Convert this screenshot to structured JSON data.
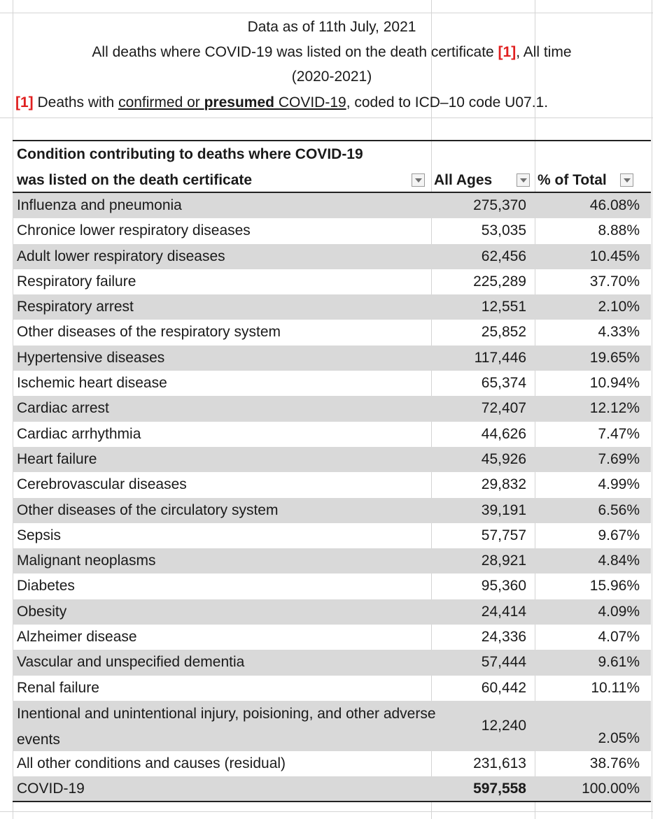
{
  "notes": {
    "date": "Data as of 11th July, 2021",
    "scope_text": "All deaths where COVID-19 was listed on the death certificate ",
    "scope_ref": "[1]",
    "scope_suffix": ", All time",
    "years": "(2020-2021)",
    "footnote_ref": "[1]",
    "footnote_pre": " Deaths with ",
    "footnote_u1": "confirmed or ",
    "footnote_u2": "presumed",
    "footnote_u3": " COVID-19",
    "footnote_post": ", coded to ICD–10 code U07.1."
  },
  "table": {
    "headers": {
      "condition_line1": "Condition contributing to deaths where COVID-19",
      "condition_line2": "was listed on the death certificate",
      "all_ages": "All Ages",
      "pct_total": "% of Total"
    },
    "rows": [
      {
        "condition": "Influenza and pneumonia",
        "all_ages": "275,370",
        "pct": "46.08%"
      },
      {
        "condition": "Chronice lower respiratory diseases",
        "all_ages": "53,035",
        "pct": "8.88%"
      },
      {
        "condition": "Adult lower respiratory diseases",
        "all_ages": "62,456",
        "pct": "10.45%"
      },
      {
        "condition": "Respiratory failure",
        "all_ages": "225,289",
        "pct": "37.70%"
      },
      {
        "condition": "Respiratory arrest",
        "all_ages": "12,551",
        "pct": "2.10%"
      },
      {
        "condition": "Other diseases of the respiratory system",
        "all_ages": "25,852",
        "pct": "4.33%"
      },
      {
        "condition": "Hypertensive diseases",
        "all_ages": "117,446",
        "pct": "19.65%"
      },
      {
        "condition": "Ischemic heart disease",
        "all_ages": "65,374",
        "pct": "10.94%"
      },
      {
        "condition": "Cardiac arrest",
        "all_ages": "72,407",
        "pct": "12.12%"
      },
      {
        "condition": "Cardiac arrhythmia",
        "all_ages": "44,626",
        "pct": "7.47%"
      },
      {
        "condition": "Heart failure",
        "all_ages": "45,926",
        "pct": "7.69%"
      },
      {
        "condition": "Cerebrovascular diseases",
        "all_ages": "29,832",
        "pct": "4.99%"
      },
      {
        "condition": "Other diseases of the circulatory system",
        "all_ages": "39,191",
        "pct": "6.56%"
      },
      {
        "condition": "Sepsis",
        "all_ages": "57,757",
        "pct": "9.67%"
      },
      {
        "condition": "Malignant neoplasms",
        "all_ages": "28,921",
        "pct": "4.84%"
      },
      {
        "condition": "Diabetes",
        "all_ages": "95,360",
        "pct": "15.96%"
      },
      {
        "condition": "Obesity",
        "all_ages": "24,414",
        "pct": "4.09%"
      },
      {
        "condition": "Alzheimer disease",
        "all_ages": "24,336",
        "pct": "4.07%"
      },
      {
        "condition": "Vascular and unspecified dementia",
        "all_ages": "57,444",
        "pct": "9.61%"
      },
      {
        "condition": "Renal failure",
        "all_ages": "60,442",
        "pct": "10.11%"
      },
      {
        "condition": "Inentional and unintentional injury, poisioning, and other adverse events",
        "all_ages": "12,240",
        "pct": "2.05%"
      },
      {
        "condition": "All other conditions and causes (residual)",
        "all_ages": "231,613",
        "pct": "38.76%"
      },
      {
        "condition": "COVID-19",
        "all_ages": "597,558",
        "pct": "100.00%"
      }
    ]
  },
  "icons": {
    "filter": "dropdown-filter-icon"
  },
  "colors": {
    "band_shade": "#d9d9d9",
    "reference_red": "#e01f1f",
    "gridline": "#d4d4d4"
  }
}
